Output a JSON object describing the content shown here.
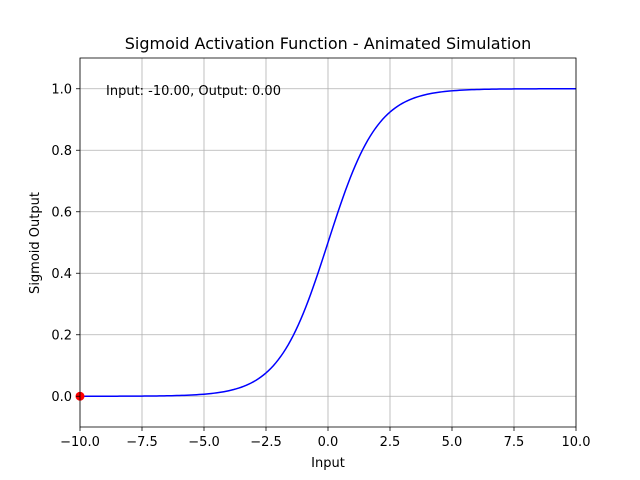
{
  "chart_data": {
    "type": "line",
    "title": "Sigmoid Activation Function - Animated Simulation",
    "xlabel": "Input",
    "ylabel": "Sigmoid Output",
    "xlim": [
      -10,
      10
    ],
    "ylim": [
      -0.1,
      1.1
    ],
    "x_ticks": [
      -10.0,
      -7.5,
      -5.0,
      -2.5,
      0.0,
      2.5,
      5.0,
      7.5,
      10.0
    ],
    "x_tick_labels": [
      "−10.0",
      "−7.5",
      "−5.0",
      "−2.5",
      "0.0",
      "2.5",
      "5.0",
      "7.5",
      "10.0"
    ],
    "y_ticks": [
      0.0,
      0.2,
      0.4,
      0.6,
      0.8,
      1.0
    ],
    "y_tick_labels": [
      "0.0",
      "0.2",
      "0.4",
      "0.6",
      "0.8",
      "1.0"
    ],
    "grid": true,
    "series": [
      {
        "function": "sigmoid",
        "color": "#0000ff",
        "x": [
          -10,
          -9,
          -8,
          -7,
          -6,
          -5,
          -4,
          -3,
          -2.5,
          -2,
          -1.5,
          -1,
          -0.5,
          0,
          0.5,
          1,
          1.5,
          2,
          2.5,
          3,
          4,
          5,
          6,
          7,
          8,
          9,
          10
        ],
        "y": [
          0.0,
          0.0001,
          0.0003,
          0.0009,
          0.0025,
          0.0067,
          0.018,
          0.0474,
          0.0759,
          0.1192,
          0.1824,
          0.2689,
          0.3775,
          0.5,
          0.6225,
          0.7311,
          0.8176,
          0.8808,
          0.9241,
          0.9526,
          0.982,
          0.9933,
          0.9975,
          0.9991,
          0.9997,
          0.9999,
          1.0
        ]
      }
    ],
    "marker": {
      "x": -10.0,
      "y": 0.0,
      "color": "#ff0000"
    },
    "annotation": "Input: -10.00, Output: 0.00",
    "colors": {
      "grid": "#b0b0b0",
      "line": "#0000ff",
      "marker": "#ff0000"
    }
  }
}
